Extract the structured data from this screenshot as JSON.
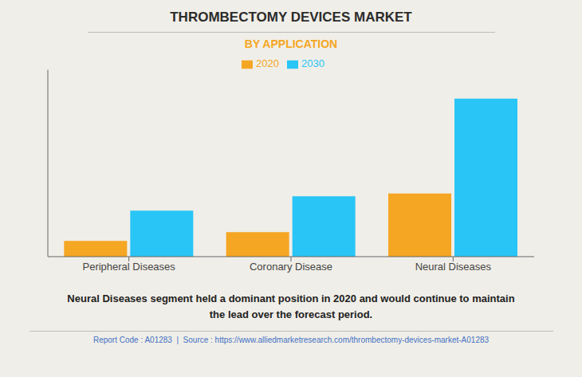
{
  "chart_data": {
    "type": "bar",
    "title": "THROMBECTOMY DEVICES MARKET",
    "subtitle": "BY APPLICATION",
    "categories": [
      "Peripheral Diseases",
      "Coronary Disease",
      "Neural Diseases"
    ],
    "series": [
      {
        "name": "2020",
        "color": "#F5A623",
        "values": [
          0.55,
          0.85,
          2.2
        ]
      },
      {
        "name": "2030",
        "color": "#29C5F6",
        "values": [
          1.6,
          2.1,
          5.5
        ]
      }
    ],
    "ylim": [
      0,
      6.5
    ],
    "grid": false,
    "tick_labels": "x",
    "legend": "top",
    "annotation": "Neural Diseases segment held a dominant position in 2020 and would continue to maintain\nthe lead over the forecast period.",
    "footer": "Report Code : A01283  |  Source : https://www.alliedmarketresearch.com/thrombectomy-devices-market-A01283"
  }
}
